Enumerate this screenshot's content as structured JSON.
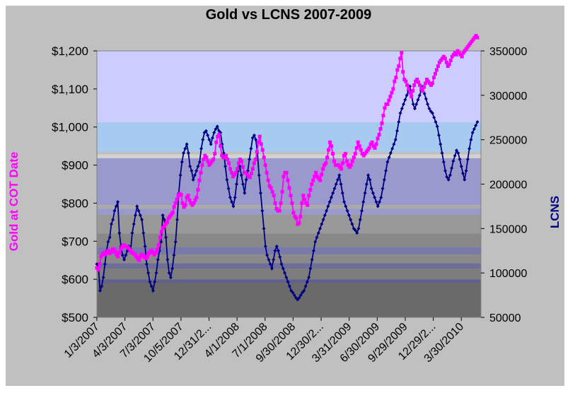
{
  "chart_data": {
    "type": "line",
    "title": "Gold vs LCNS  2007-2009",
    "y_left_label": "Gold at COT Date",
    "y_right_label": "LCNS",
    "y_left_ticks": [
      "$500",
      "$600",
      "$700",
      "$800",
      "$900",
      "$1,000",
      "$1,100",
      "$1,200"
    ],
    "y_right_ticks": [
      "50000",
      "100000",
      "150000",
      "200000",
      "250000",
      "300000",
      "350000"
    ],
    "y_left_range": [
      500,
      1200
    ],
    "y_right_range": [
      50000,
      350000
    ],
    "x_tick_labels": [
      "1/3/2007",
      "4/3/2007",
      "7/3/2007",
      "10/5/2007",
      "12/31/2...",
      "4/1/2008",
      "7/1/2008",
      "9/30/2008",
      "12/30/2...",
      "3/31/2009",
      "6/30/2009",
      "9/29/2009",
      "12/29/2...",
      "3/30/2010"
    ],
    "series": [
      {
        "name": "Gold at COT Date",
        "axis": "left",
        "color": "#ff00ff",
        "marker": "square",
        "values": [
          630,
          625,
          640,
          660,
          665,
          670,
          665,
          672,
          675,
          668,
          672,
          678,
          680,
          672,
          665,
          660,
          670,
          680,
          685,
          690,
          688,
          686,
          684,
          680,
          675,
          670,
          668,
          665,
          660,
          655,
          650,
          660,
          665,
          662,
          658,
          655,
          660,
          668,
          672,
          675,
          670,
          665,
          670,
          678,
          690,
          710,
          725,
          735,
          740,
          745,
          750,
          760,
          765,
          770,
          775,
          790,
          800,
          810,
          820,
          825,
          822,
          800,
          790,
          795,
          815,
          820,
          808,
          800,
          795,
          800,
          808,
          815,
          835,
          860,
          880,
          900,
          915,
          925,
          920,
          910,
          900,
          905,
          910,
          915,
          930,
          960,
          975,
          980,
          950,
          925,
          920,
          920,
          925,
          915,
          905,
          890,
          880,
          870,
          875,
          880,
          890,
          905,
          915,
          910,
          895,
          880,
          880,
          875,
          870,
          868,
          878,
          890,
          905,
          915,
          935,
          960,
          975,
          955,
          940,
          920,
          900,
          880,
          860,
          845,
          840,
          830,
          820,
          800,
          785,
          780,
          780,
          800,
          830,
          870,
          880,
          880,
          860,
          840,
          820,
          800,
          775,
          765,
          760,
          745,
          748,
          765,
          800,
          820,
          810,
          800,
          795,
          820,
          835,
          850,
          860,
          870,
          880,
          870,
          865,
          860,
          875,
          890,
          900,
          905,
          920,
          940,
          960,
          950,
          930,
          910,
          900,
          900,
          900,
          895,
          890,
          905,
          925,
          930,
          910,
          900,
          895,
          900,
          910,
          920,
          930,
          945,
          960,
          950,
          940,
          930,
          925,
          930,
          935,
          940,
          945,
          955,
          960,
          950,
          945,
          955,
          970,
          980,
          995,
          1010,
          1030,
          1050,
          1060,
          1060,
          1070,
          1080,
          1090,
          1100,
          1120,
          1130,
          1150,
          1160,
          1180,
          1195,
          1145,
          1125,
          1120,
          1110,
          1100,
          1090,
          1080,
          1095,
          1110,
          1120,
          1125,
          1118,
          1110,
          1100,
          1095,
          1105,
          1115,
          1125,
          1120,
          1115,
          1110,
          1115,
          1130,
          1140,
          1150,
          1160,
          1170,
          1175,
          1180,
          1185,
          1180,
          1170,
          1160,
          1165,
          1175,
          1185,
          1190,
          1195,
          1190,
          1200,
          1195,
          1190,
          1185,
          1195,
          1200,
          1205,
          1210,
          1215,
          1220,
          1225,
          1230,
          1235,
          1240,
          1235
        ]
      },
      {
        "name": "LCNS",
        "axis": "right",
        "color": "#000080",
        "marker": "diamond",
        "values": [
          110000,
          105000,
          80000,
          85000,
          95000,
          110000,
          125000,
          135000,
          140000,
          155000,
          160000,
          170000,
          175000,
          180000,
          145000,
          130000,
          120000,
          115000,
          120000,
          125000,
          130000,
          125000,
          145000,
          155000,
          165000,
          175000,
          170000,
          165000,
          160000,
          145000,
          130000,
          110000,
          100000,
          90000,
          85000,
          80000,
          90000,
          100000,
          115000,
          125000,
          135000,
          165000,
          160000,
          140000,
          115000,
          100000,
          95000,
          105000,
          120000,
          135000,
          160000,
          190000,
          210000,
          225000,
          235000,
          240000,
          245000,
          235000,
          220000,
          215000,
          205000,
          210000,
          215000,
          220000,
          225000,
          240000,
          250000,
          258000,
          260000,
          255000,
          250000,
          245000,
          252000,
          258000,
          262000,
          265000,
          260000,
          258000,
          245000,
          235000,
          220000,
          205000,
          195000,
          185000,
          180000,
          175000,
          185000,
          200000,
          215000,
          220000,
          210000,
          200000,
          190000,
          205000,
          215000,
          228000,
          240000,
          252000,
          255000,
          250000,
          235000,
          210000,
          190000,
          170000,
          150000,
          130000,
          120000,
          115000,
          110000,
          105000,
          115000,
          125000,
          130000,
          125000,
          118000,
          110000,
          105000,
          100000,
          95000,
          90000,
          85000,
          80000,
          78000,
          75000,
          72000,
          70000,
          72000,
          75000,
          78000,
          80000,
          85000,
          90000,
          95000,
          105000,
          115000,
          125000,
          135000,
          140000,
          145000,
          150000,
          155000,
          160000,
          165000,
          170000,
          175000,
          180000,
          185000,
          190000,
          195000,
          200000,
          205000,
          210000,
          200000,
          190000,
          180000,
          175000,
          170000,
          165000,
          160000,
          155000,
          150000,
          148000,
          145000,
          150000,
          160000,
          170000,
          180000,
          190000,
          200000,
          210000,
          205000,
          195000,
          190000,
          185000,
          180000,
          175000,
          180000,
          185000,
          195000,
          205000,
          215000,
          225000,
          230000,
          235000,
          240000,
          245000,
          250000,
          260000,
          270000,
          280000,
          285000,
          290000,
          295000,
          300000,
          305000,
          310000,
          300000,
          290000,
          285000,
          290000,
          295000,
          300000,
          305000,
          310000,
          302000,
          296000,
          290000,
          285000,
          282000,
          280000,
          275000,
          270000,
          265000,
          255000,
          245000,
          235000,
          225000,
          215000,
          208000,
          205000,
          210000,
          218000,
          226000,
          232000,
          238000,
          235000,
          228000,
          220000,
          212000,
          205000,
          215000,
          228000,
          240000,
          250000,
          258000,
          262000,
          266000,
          270000
        ]
      }
    ]
  }
}
